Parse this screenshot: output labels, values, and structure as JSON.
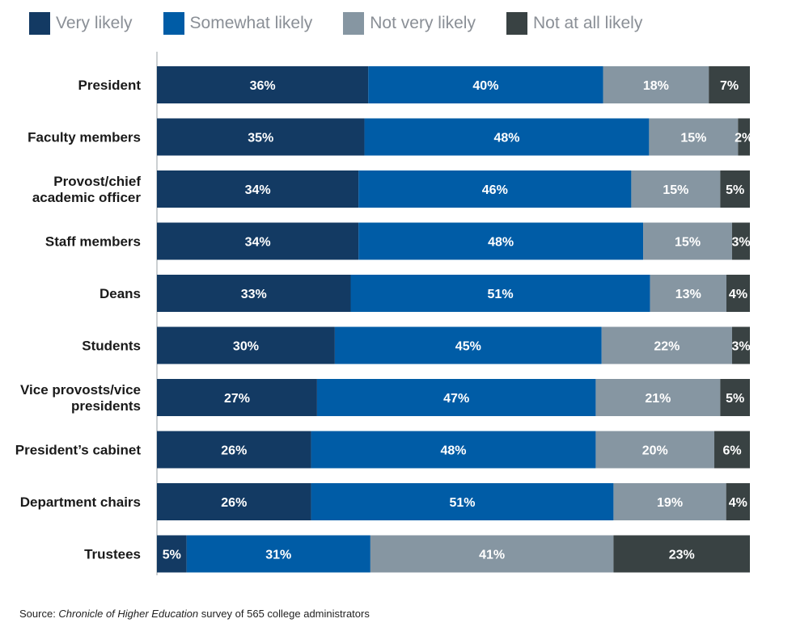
{
  "chart_data": {
    "type": "bar",
    "orientation": "horizontal",
    "stacked": true,
    "categories": [
      "President",
      "Faculty members",
      "Provost/chief academic officer",
      "Staff members",
      "Deans",
      "Students",
      "Vice provosts/vice presidents",
      "President’s cabinet",
      "Department chairs",
      "Trustees"
    ],
    "category_lines": [
      [
        "President"
      ],
      [
        "Faculty members"
      ],
      [
        "Provost/chief",
        "academic officer"
      ],
      [
        "Staff members"
      ],
      [
        "Deans"
      ],
      [
        "Students"
      ],
      [
        "Vice provosts/vice",
        "presidents"
      ],
      [
        "President’s cabinet"
      ],
      [
        "Department chairs"
      ],
      [
        "Trustees"
      ]
    ],
    "series": [
      {
        "name": "Very likely",
        "color": "#133a63",
        "values": [
          36,
          35,
          34,
          34,
          33,
          30,
          27,
          26,
          26,
          5
        ]
      },
      {
        "name": "Somewhat likely",
        "color": "#005ca6",
        "values": [
          40,
          48,
          46,
          48,
          51,
          45,
          47,
          48,
          51,
          31
        ]
      },
      {
        "name": "Not very likely",
        "color": "#8696a2",
        "values": [
          18,
          15,
          15,
          15,
          13,
          22,
          21,
          20,
          19,
          41
        ]
      },
      {
        "name": "Not at all likely",
        "color": "#394243",
        "values": [
          7,
          2,
          5,
          3,
          4,
          3,
          5,
          6,
          4,
          23
        ]
      }
    ],
    "value_suffix": "%",
    "legend_position": "top-left",
    "grid": false
  },
  "source": {
    "prefix": "Source: ",
    "publication": "Chronicle of Higher Education",
    "suffix": " survey of 565 college administrators"
  }
}
